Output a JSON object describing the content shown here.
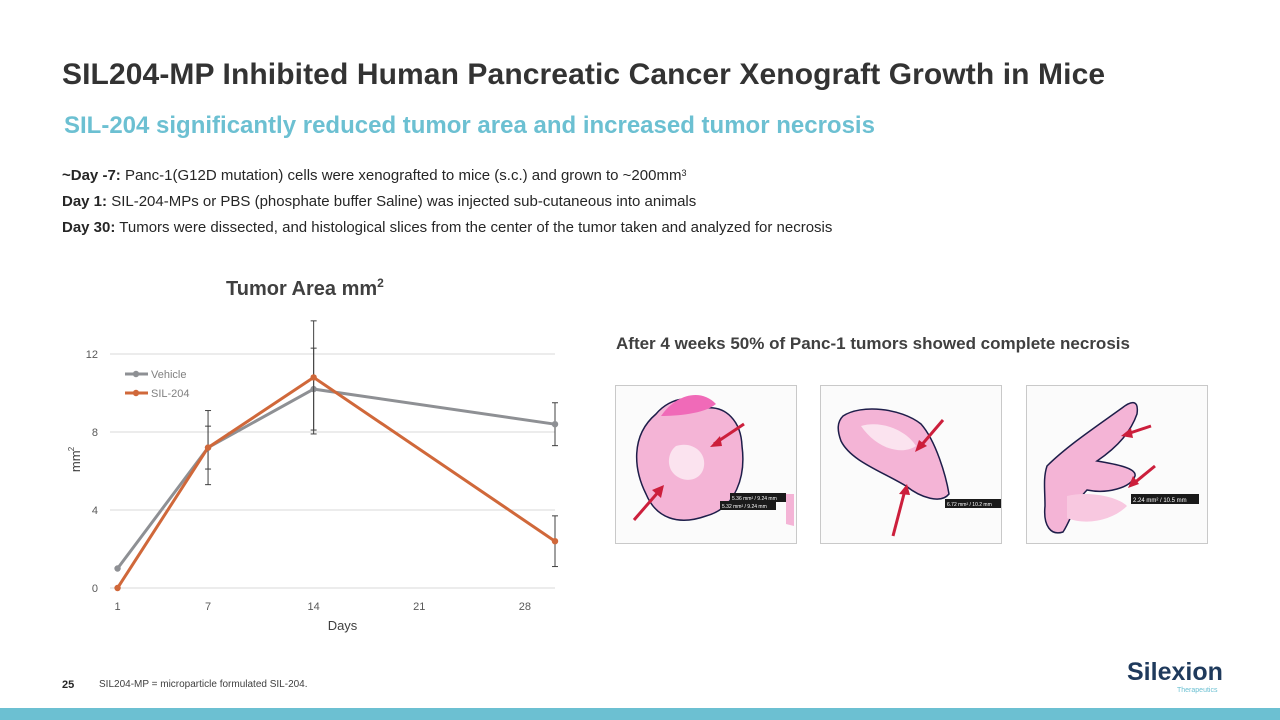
{
  "slide": {
    "title": "SIL204-MP Inhibited Human Pancreatic Cancer Xenograft Growth in Mice",
    "subtitle": "SIL-204 significantly reduced tumor area and increased tumor necrosis",
    "bullets": [
      {
        "label": "~Day -7:",
        "text": " Panc-1(G12D mutation) cells were xenografted to mice (s.c.) and grown to ~200mm",
        "sup": "3"
      },
      {
        "label": "Day 1:",
        "text": " SIL-204-MPs or PBS (phosphate buffer Saline) was injected sub-cutaneous into animals",
        "sup": ""
      },
      {
        "label": "Day 30:",
        "text": "  Tumors were dissected, and histological slices from the center of the tumor taken and analyzed for necrosis",
        "sup": ""
      }
    ],
    "necrosis_caption": "After 4 weeks 50% of Panc-1 tumors showed  complete necrosis",
    "histology_labels": [
      {
        "line1": "5.36 mm² / 9.24 mm",
        "line2": "5.32 mm² / 9.24 mm"
      },
      {
        "line1": "6.72 mm² / 10.2 mm",
        "line2": ""
      },
      {
        "line1": "2.24 mm² / 10.5 mm",
        "line2": ""
      }
    ],
    "page_number": "25",
    "footnote": "SIL204-MP = microparticle formulated SIL-204.",
    "logo": {
      "name": "Silexion",
      "tagline": "Therapeutics"
    },
    "colors": {
      "accent": "#6cc0d2",
      "vehicle": "#8e9094",
      "sil204": "#d0683a",
      "tissue": "#f2a6cf",
      "arrow": "#cc1f3c"
    }
  },
  "chart_data": {
    "type": "line",
    "title": "Tumor Area mm",
    "title_sup": "2",
    "xlabel": "Days",
    "ylabel": "mm",
    "ylabel_sup": "2",
    "x_ticks": [
      1,
      7,
      14,
      21,
      28
    ],
    "y_ticks": [
      0,
      4,
      8,
      12
    ],
    "xlim": [
      0.5,
      30
    ],
    "ylim": [
      0,
      12
    ],
    "grid": "horizontal",
    "legend": "top-left",
    "series": [
      {
        "name": "Vehicle",
        "color": "#8e9094",
        "x": [
          1,
          7,
          14,
          30
        ],
        "y": [
          1.0,
          7.2,
          10.2,
          8.4
        ],
        "err": [
          0,
          1.9,
          2.1,
          1.1
        ]
      },
      {
        "name": "SIL-204",
        "color": "#d0683a",
        "x": [
          1,
          7,
          14,
          30
        ],
        "y": [
          0.0,
          7.2,
          10.8,
          2.4
        ],
        "err": [
          0,
          1.1,
          2.9,
          1.3
        ]
      }
    ]
  }
}
